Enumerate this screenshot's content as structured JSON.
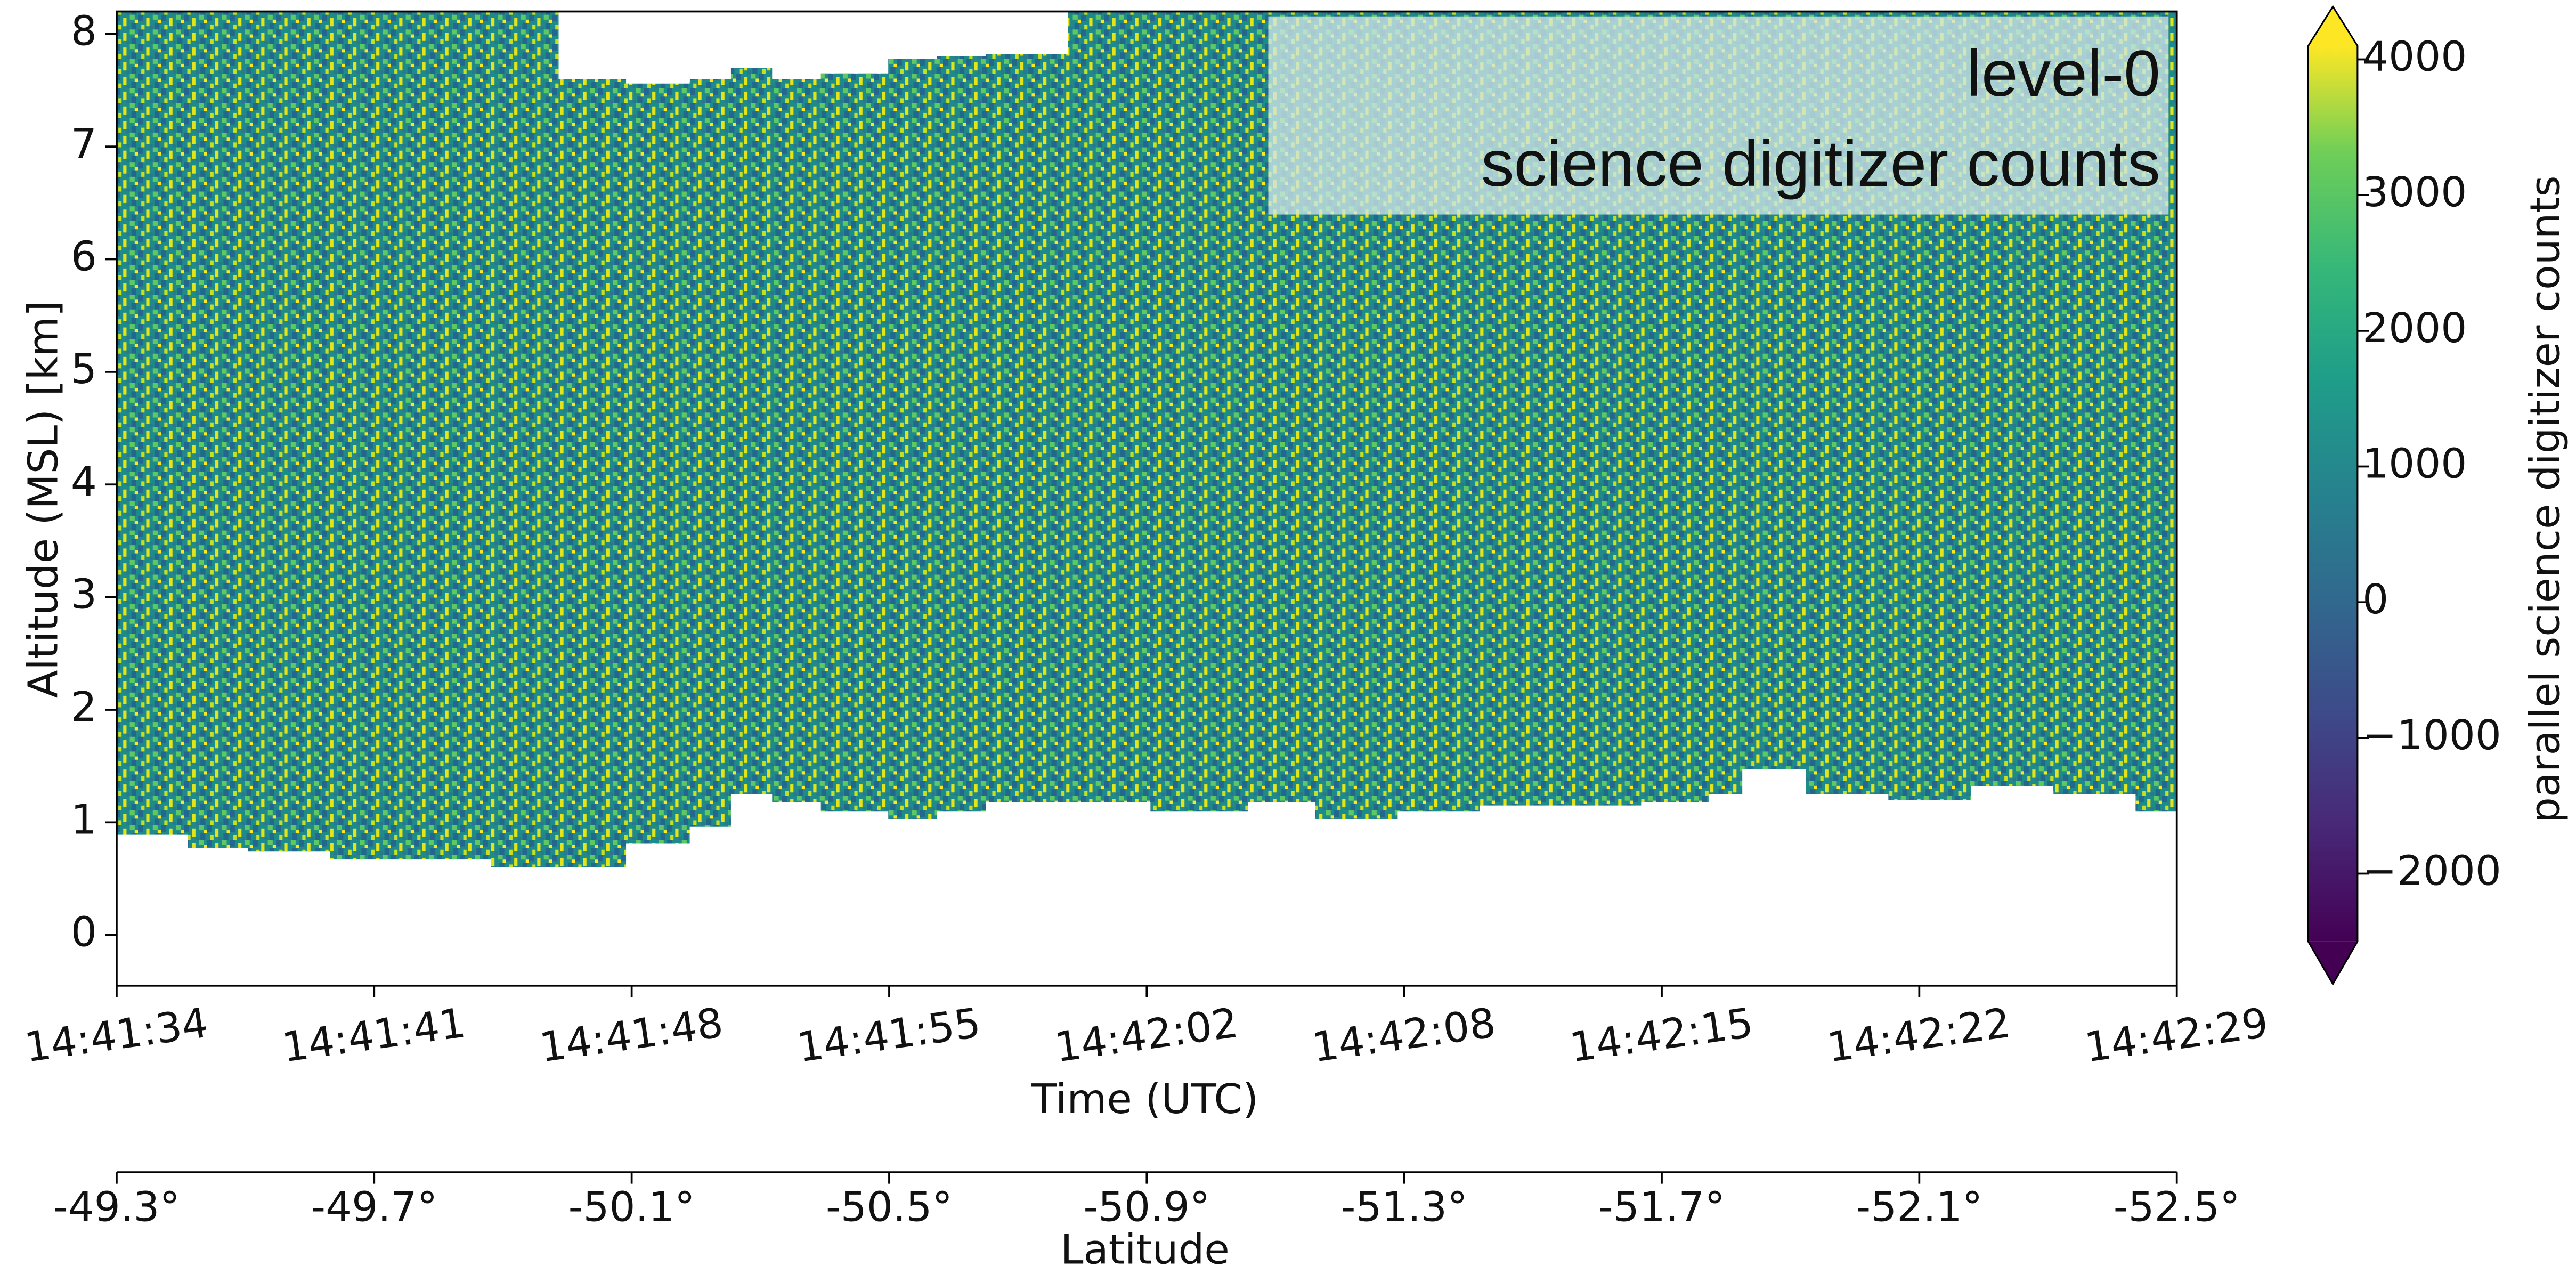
{
  "chart_data": {
    "type": "heatmap",
    "x_label": "Time (UTC)",
    "y_label": "Altitude (MSL) [km]",
    "annotation": [
      "level-0",
      "science digitizer counts"
    ],
    "x": [
      52894.0,
      52895.9,
      52897.5,
      52899.7,
      52902.3,
      52904.0,
      52905.8,
      52907.6,
      52909.3,
      52910.4,
      52911.5,
      52912.8,
      52914.6,
      52915.9,
      52917.2,
      52919.4,
      52921.6,
      52924.2,
      52926.0,
      52928.2,
      52930.4,
      52934.7,
      52936.5,
      52937.4,
      52939.1,
      52941.3,
      52943.5,
      52945.7,
      52947.9,
      52949.0
    ],
    "signal_top": [
      8.2,
      8.2,
      8.2,
      8.2,
      8.2,
      8.2,
      7.6,
      7.56,
      7.6,
      7.7,
      7.6,
      7.65,
      7.78,
      7.8,
      7.82,
      8.2,
      8.2,
      8.2,
      8.2,
      8.2,
      8.2,
      8.2,
      8.2,
      8.2,
      8.2,
      8.2,
      8.2,
      8.2,
      8.2,
      8.2
    ],
    "signal_bottom": [
      0.89,
      0.77,
      0.74,
      0.67,
      0.67,
      0.6,
      0.6,
      0.81,
      0.96,
      1.25,
      1.18,
      1.1,
      1.03,
      1.1,
      1.18,
      1.18,
      1.1,
      1.18,
      1.03,
      1.1,
      1.15,
      1.18,
      1.25,
      1.47,
      1.25,
      1.2,
      1.32,
      1.25,
      1.1,
      1.18
    ],
    "xlim": [
      52894,
      52949
    ],
    "xticks": [
      {
        "value": 52894,
        "label": "14:41:34"
      },
      {
        "value": 52900.875,
        "label": "14:41:41"
      },
      {
        "value": 52907.75,
        "label": "14:41:48"
      },
      {
        "value": 52914.625,
        "label": "14:41:55"
      },
      {
        "value": 52921.5,
        "label": "14:42:02"
      },
      {
        "value": 52928.375,
        "label": "14:42:08"
      },
      {
        "value": 52935.25,
        "label": "14:42:15"
      },
      {
        "value": 52942.125,
        "label": "14:42:22"
      },
      {
        "value": 52949,
        "label": "14:42:29"
      }
    ],
    "ylim": [
      -0.45,
      8.2
    ],
    "yticks": [
      0,
      1,
      2,
      3,
      4,
      5,
      6,
      7,
      8
    ],
    "secondary_x_label": "Latitude",
    "secondary_xlim": [
      -49.3,
      -52.5
    ],
    "secondary_xticks": [
      {
        "value": -49.3,
        "label": "-49.3°"
      },
      {
        "value": -49.7,
        "label": "-49.7°"
      },
      {
        "value": -50.1,
        "label": "-50.1°"
      },
      {
        "value": -50.5,
        "label": "-50.5°"
      },
      {
        "value": -50.9,
        "label": "-50.9°"
      },
      {
        "value": -51.3,
        "label": "-51.3°"
      },
      {
        "value": -51.7,
        "label": "-51.7°"
      },
      {
        "value": -52.1,
        "label": "-52.1°"
      },
      {
        "value": -52.5,
        "label": "-52.5°"
      }
    ],
    "colorbar_label": "parallel science digitizer counts",
    "colormap": "viridis",
    "clim": [
      -2500,
      4100
    ],
    "colorbar_ticks": [
      {
        "value": -2000,
        "label": "−2000"
      },
      {
        "value": -1000,
        "label": "−1000"
      },
      0,
      1000,
      2000,
      3000,
      4000
    ]
  }
}
